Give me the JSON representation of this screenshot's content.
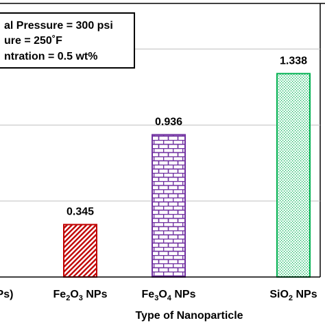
{
  "chart_data": {
    "type": "bar",
    "categories": [
      "Ps)",
      "Fe2O3 NPs",
      "Fe3O4 NPs",
      "SiO2 NPs"
    ],
    "category_labels": [
      [
        {
          "t": "Ps)"
        }
      ],
      [
        {
          "t": "Fe"
        },
        {
          "t": "2",
          "sub": true
        },
        {
          "t": "O"
        },
        {
          "t": "3",
          "sub": true
        },
        {
          "t": " NPs"
        }
      ],
      [
        {
          "t": "Fe"
        },
        {
          "t": "3",
          "sub": true
        },
        {
          "t": "O"
        },
        {
          "t": "4",
          "sub": true
        },
        {
          "t": " NPs"
        }
      ],
      [
        {
          "t": "SiO"
        },
        {
          "t": "2",
          "sub": true
        },
        {
          "t": " NPs"
        }
      ]
    ],
    "values": [
      null,
      0.345,
      0.936,
      1.338
    ],
    "data_labels": [
      "",
      "0.345",
      "0.936",
      "1.338"
    ],
    "patterns": [
      "none",
      "diagonal-red",
      "brick-purple",
      "dots-green"
    ],
    "colors": [
      "#000000",
      "#c00000",
      "#7030a0",
      "#00b050"
    ],
    "fill_colors": [
      "#ffffff",
      "#ffffff",
      "#ffffff",
      "#eafaf2"
    ],
    "xlabel": "Type of Nanoparticle",
    "ylabel": "",
    "ylim": [
      0,
      1.8
    ],
    "gridlines": [
      0.5,
      1.0,
      1.5
    ],
    "grid": true,
    "legend_box": {
      "lines": [
        "al Pressure = 300 psi",
        "ure = 250˚F",
        "ntration = 0.5 wt%"
      ]
    }
  }
}
